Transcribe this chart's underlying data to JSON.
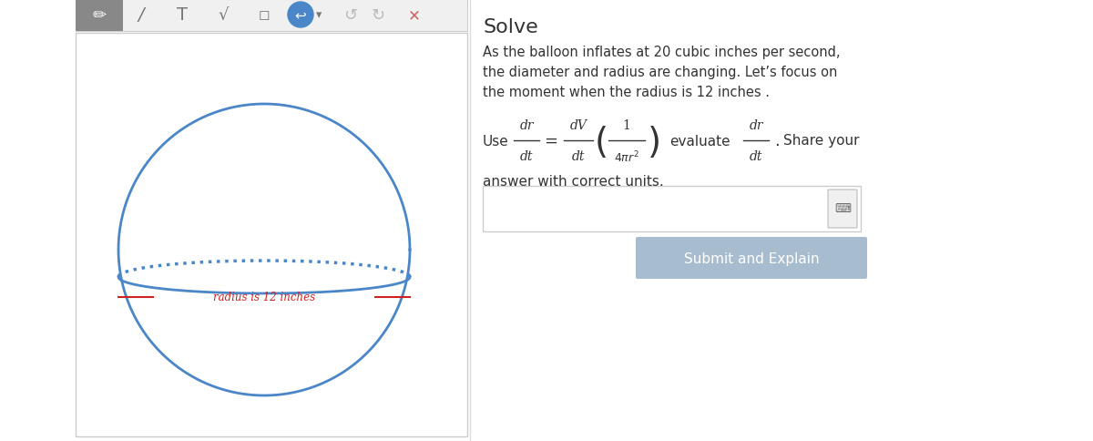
{
  "bg_color": "#ffffff",
  "circle_color": "#4a86c8",
  "circle_lw": 2.0,
  "radius_label": "radius is 12 inches",
  "radius_label_color": "#cc2222",
  "title": "Solve",
  "problem_text_line1": "As the balloon inflates at 20 cubic inches per second,",
  "problem_text_line2": "the diameter and radius are changing. Let’s focus on",
  "problem_text_line3": "the moment when the radius is 12 inches .",
  "answer_text": "answer with correct units.",
  "button_text": "Submit and Explain",
  "button_color": "#a8bccf",
  "button_text_color": "#ffffff",
  "x_button_color": "#cc6666",
  "text_color": "#333333",
  "panel_border_color": "#cccccc",
  "toolbar_gray": "#888888",
  "icon_gray": "#777777"
}
